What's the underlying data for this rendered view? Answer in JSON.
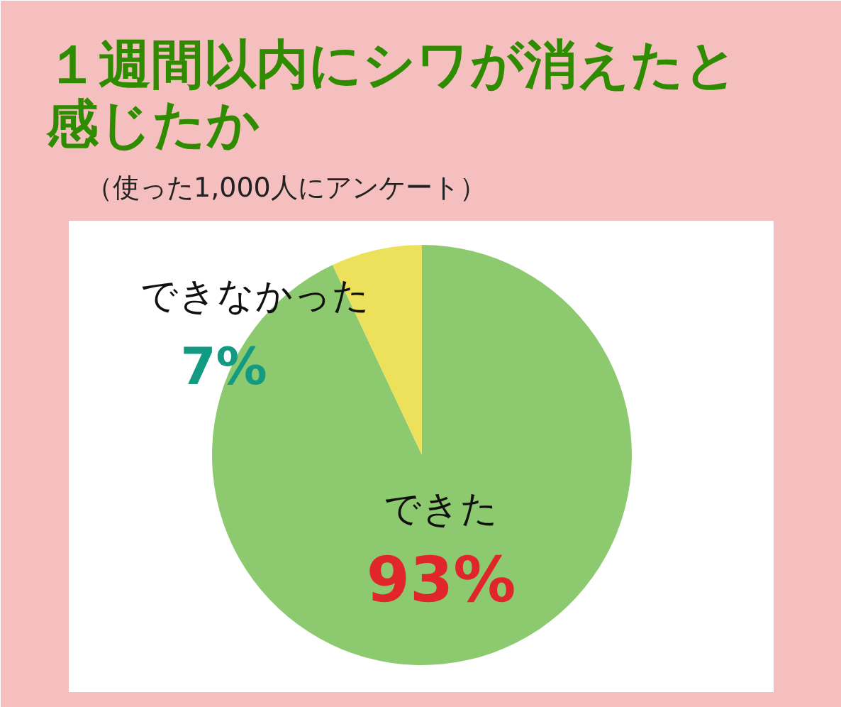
{
  "chart_data": {
    "type": "pie",
    "title": "１週間以内にシワが消えたと感じたか",
    "subtitle": "（使った1,000人にアンケート）",
    "categories": [
      "できた",
      "できなかった"
    ],
    "values": [
      93,
      7
    ],
    "colors": [
      "#8dc96e",
      "#ede05a"
    ],
    "value_labels": [
      "93%",
      "7%"
    ]
  }
}
